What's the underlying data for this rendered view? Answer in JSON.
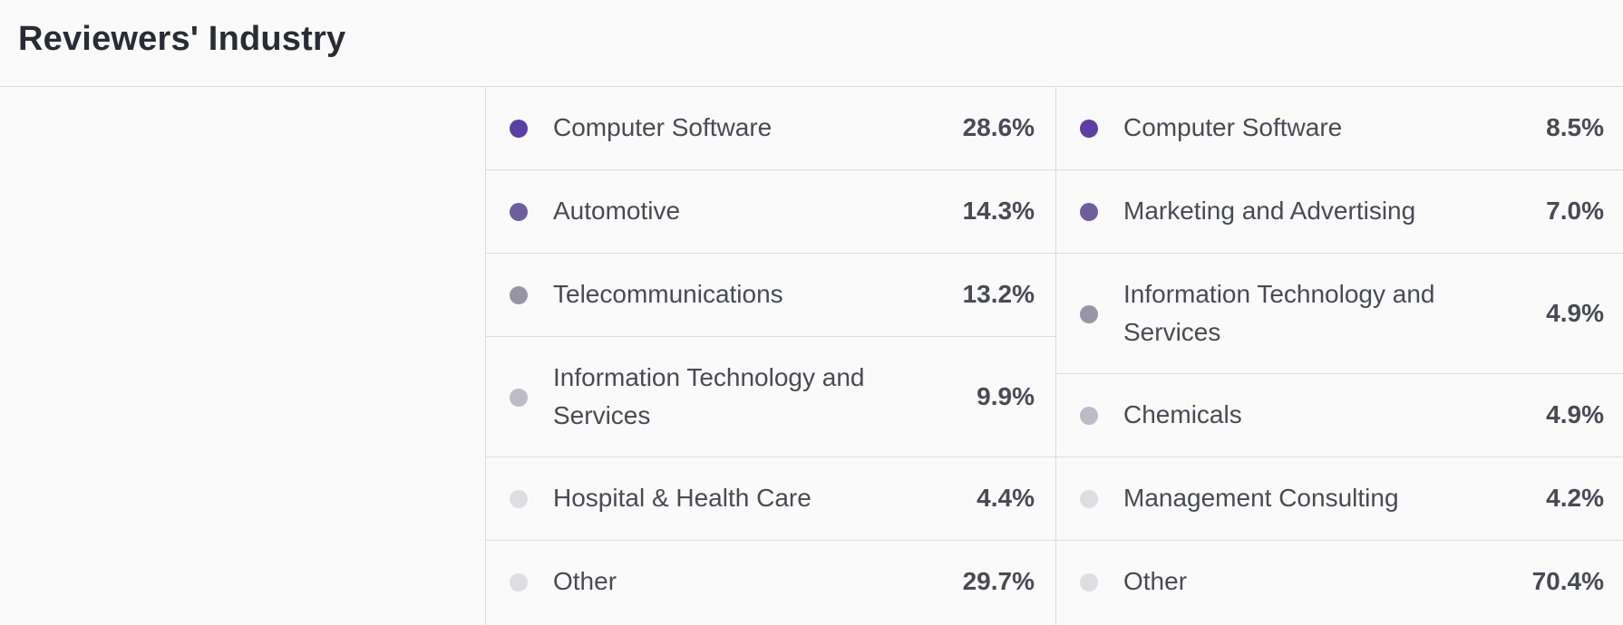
{
  "page": {
    "title": "Reviewers' Industry"
  },
  "legend_left": [
    {
      "label": "Computer Software",
      "value": "28.6%",
      "color": "#5b3fa3"
    },
    {
      "label": "Automotive",
      "value": "14.3%",
      "color": "#6f5e9e"
    },
    {
      "label": "Telecommunications",
      "value": "13.2%",
      "color": "#9896a6"
    },
    {
      "label": "Information Technology and",
      "label2": "Services",
      "value": "9.9%",
      "color": "#bdbcc5"
    },
    {
      "label": "Hospital & Health Care",
      "value": "4.4%",
      "color": "#dedde1"
    },
    {
      "label": "Other",
      "value": "29.7%",
      "color": "#dedde1"
    }
  ],
  "legend_right": [
    {
      "label": "Computer Software",
      "value": "8.5%",
      "color": "#5b3fa3"
    },
    {
      "label": "Marketing and Advertising",
      "value": "7.0%",
      "color": "#6f5e9e"
    },
    {
      "label": "Information Technology and",
      "label2": "Services",
      "value": "4.9%",
      "color": "#9896a6"
    },
    {
      "label": "Chemicals",
      "value": "4.9%",
      "color": "#bdbcc5"
    },
    {
      "label": "Management Consulting",
      "value": "4.2%",
      "color": "#dedde1"
    },
    {
      "label": "Other",
      "value": "70.4%",
      "color": "#dedde1"
    }
  ]
}
